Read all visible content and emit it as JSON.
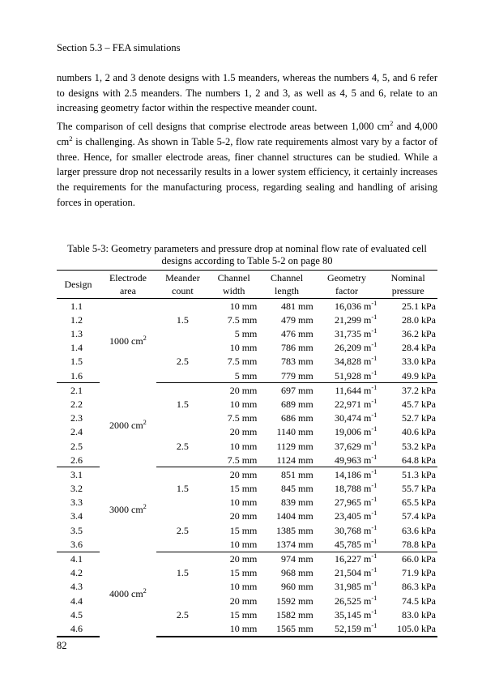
{
  "header": "Section 5.3 – FEA simulations",
  "para1": "numbers 1, 2 and 3 denote designs with 1.5 meanders, whereas the numbers 4, 5, and 6 refer to designs with 2.5 meanders. The numbers 1, 2 and 3, as well as 4, 5 and 6, relate to an increasing geometry factor within the respective meander count.",
  "para2a": "The comparison of cell designs that comprise electrode areas between 1,000 cm",
  "para2b": " and 4,000 cm",
  "para2c": " is challenging. As shown in Table 5-2, flow rate requirements almost vary by a factor of three. Hence, for smaller electrode areas, finer channel structures can be studied. While a larger pressure drop not necessarily results in a lower system efficiency, it certainly increases the requirements for the manufacturing process, regarding sealing and handling of arising forces in operation.",
  "caption_a": "Table 5-3: Geometry parameters and pressure drop at nominal flow rate of evaluated cell",
  "caption_b": "designs according to Table 5-2 on page 80",
  "columns": [
    "Design",
    "Electrode area",
    "Meander count",
    "Channel width",
    "Channel length",
    "Geometry factor",
    "Nominal pressure"
  ],
  "groups": [
    {
      "area": "1000 cm²",
      "rows": [
        {
          "design": "1.1",
          "count": "",
          "width": "10 mm",
          "length": "481 mm",
          "geom": "16,036",
          "press": "25.1 kPa"
        },
        {
          "design": "1.2",
          "count": "1.5",
          "width": "7.5 mm",
          "length": "479 mm",
          "geom": "21,299",
          "press": "28.0 kPa"
        },
        {
          "design": "1.3",
          "count": "",
          "width": "5 mm",
          "length": "476 mm",
          "geom": "31,735",
          "press": "36.2 kPa"
        },
        {
          "design": "1.4",
          "count": "",
          "width": "10 mm",
          "length": "786 mm",
          "geom": "26,209",
          "press": "28.4 kPa"
        },
        {
          "design": "1.5",
          "count": "2.5",
          "width": "7.5 mm",
          "length": "783 mm",
          "geom": "34,828",
          "press": "33.0 kPa"
        },
        {
          "design": "1.6",
          "count": "",
          "width": "5 mm",
          "length": "779 mm",
          "geom": "51,928",
          "press": "49.9 kPa"
        }
      ]
    },
    {
      "area": "2000 cm²",
      "rows": [
        {
          "design": "2.1",
          "count": "",
          "width": "20 mm",
          "length": "697 mm",
          "geom": "11,644",
          "press": "37.2 kPa"
        },
        {
          "design": "2.2",
          "count": "1.5",
          "width": "10 mm",
          "length": "689 mm",
          "geom": "22,971",
          "press": "45.7 kPa"
        },
        {
          "design": "2.3",
          "count": "",
          "width": "7.5 mm",
          "length": "686 mm",
          "geom": "30,474",
          "press": "52.7 kPa"
        },
        {
          "design": "2.4",
          "count": "",
          "width": "20 mm",
          "length": "1140 mm",
          "geom": "19,006",
          "press": "40.6 kPa"
        },
        {
          "design": "2.5",
          "count": "2.5",
          "width": "10 mm",
          "length": "1129 mm",
          "geom": "37,629",
          "press": "53.2 kPa"
        },
        {
          "design": "2.6",
          "count": "",
          "width": "7.5 mm",
          "length": "1124 mm",
          "geom": "49,963",
          "press": "64.8 kPa"
        }
      ]
    },
    {
      "area": "3000 cm²",
      "rows": [
        {
          "design": "3.1",
          "count": "",
          "width": "20 mm",
          "length": "851 mm",
          "geom": "14,186",
          "press": "51.3 kPa"
        },
        {
          "design": "3.2",
          "count": "1.5",
          "width": "15 mm",
          "length": "845 mm",
          "geom": "18,788",
          "press": "55.7 kPa"
        },
        {
          "design": "3.3",
          "count": "",
          "width": "10 mm",
          "length": "839 mm",
          "geom": "27,965",
          "press": "65.5 kPa"
        },
        {
          "design": "3.4",
          "count": "",
          "width": "20 mm",
          "length": "1404 mm",
          "geom": "23,405",
          "press": "57.4 kPa"
        },
        {
          "design": "3.5",
          "count": "2.5",
          "width": "15 mm",
          "length": "1385 mm",
          "geom": "30,768",
          "press": "63.6 kPa"
        },
        {
          "design": "3.6",
          "count": "",
          "width": "10 mm",
          "length": "1374 mm",
          "geom": "45,785",
          "press": "78.8 kPa"
        }
      ]
    },
    {
      "area": "4000 cm²",
      "rows": [
        {
          "design": "4.1",
          "count": "",
          "width": "20 mm",
          "length": "974 mm",
          "geom": "16,227",
          "press": "66.0 kPa"
        },
        {
          "design": "4.2",
          "count": "1.5",
          "width": "15 mm",
          "length": "968 mm",
          "geom": "21,504",
          "press": "71.9 kPa"
        },
        {
          "design": "4.3",
          "count": "",
          "width": "10 mm",
          "length": "960 mm",
          "geom": "31,985",
          "press": "86.3 kPa"
        },
        {
          "design": "4.4",
          "count": "",
          "width": "20 mm",
          "length": "1592 mm",
          "geom": "26,525",
          "press": "74.5 kPa"
        },
        {
          "design": "4.5",
          "count": "2.5",
          "width": "15 mm",
          "length": "1582 mm",
          "geom": "35,145",
          "press": "83.0 kPa"
        },
        {
          "design": "4.6",
          "count": "",
          "width": "10 mm",
          "length": "1565 mm",
          "geom": "52,159",
          "press": "105.0 kPa"
        }
      ]
    }
  ],
  "geom_unit_html": " m<sup>-1</sup>",
  "page_number": "82"
}
